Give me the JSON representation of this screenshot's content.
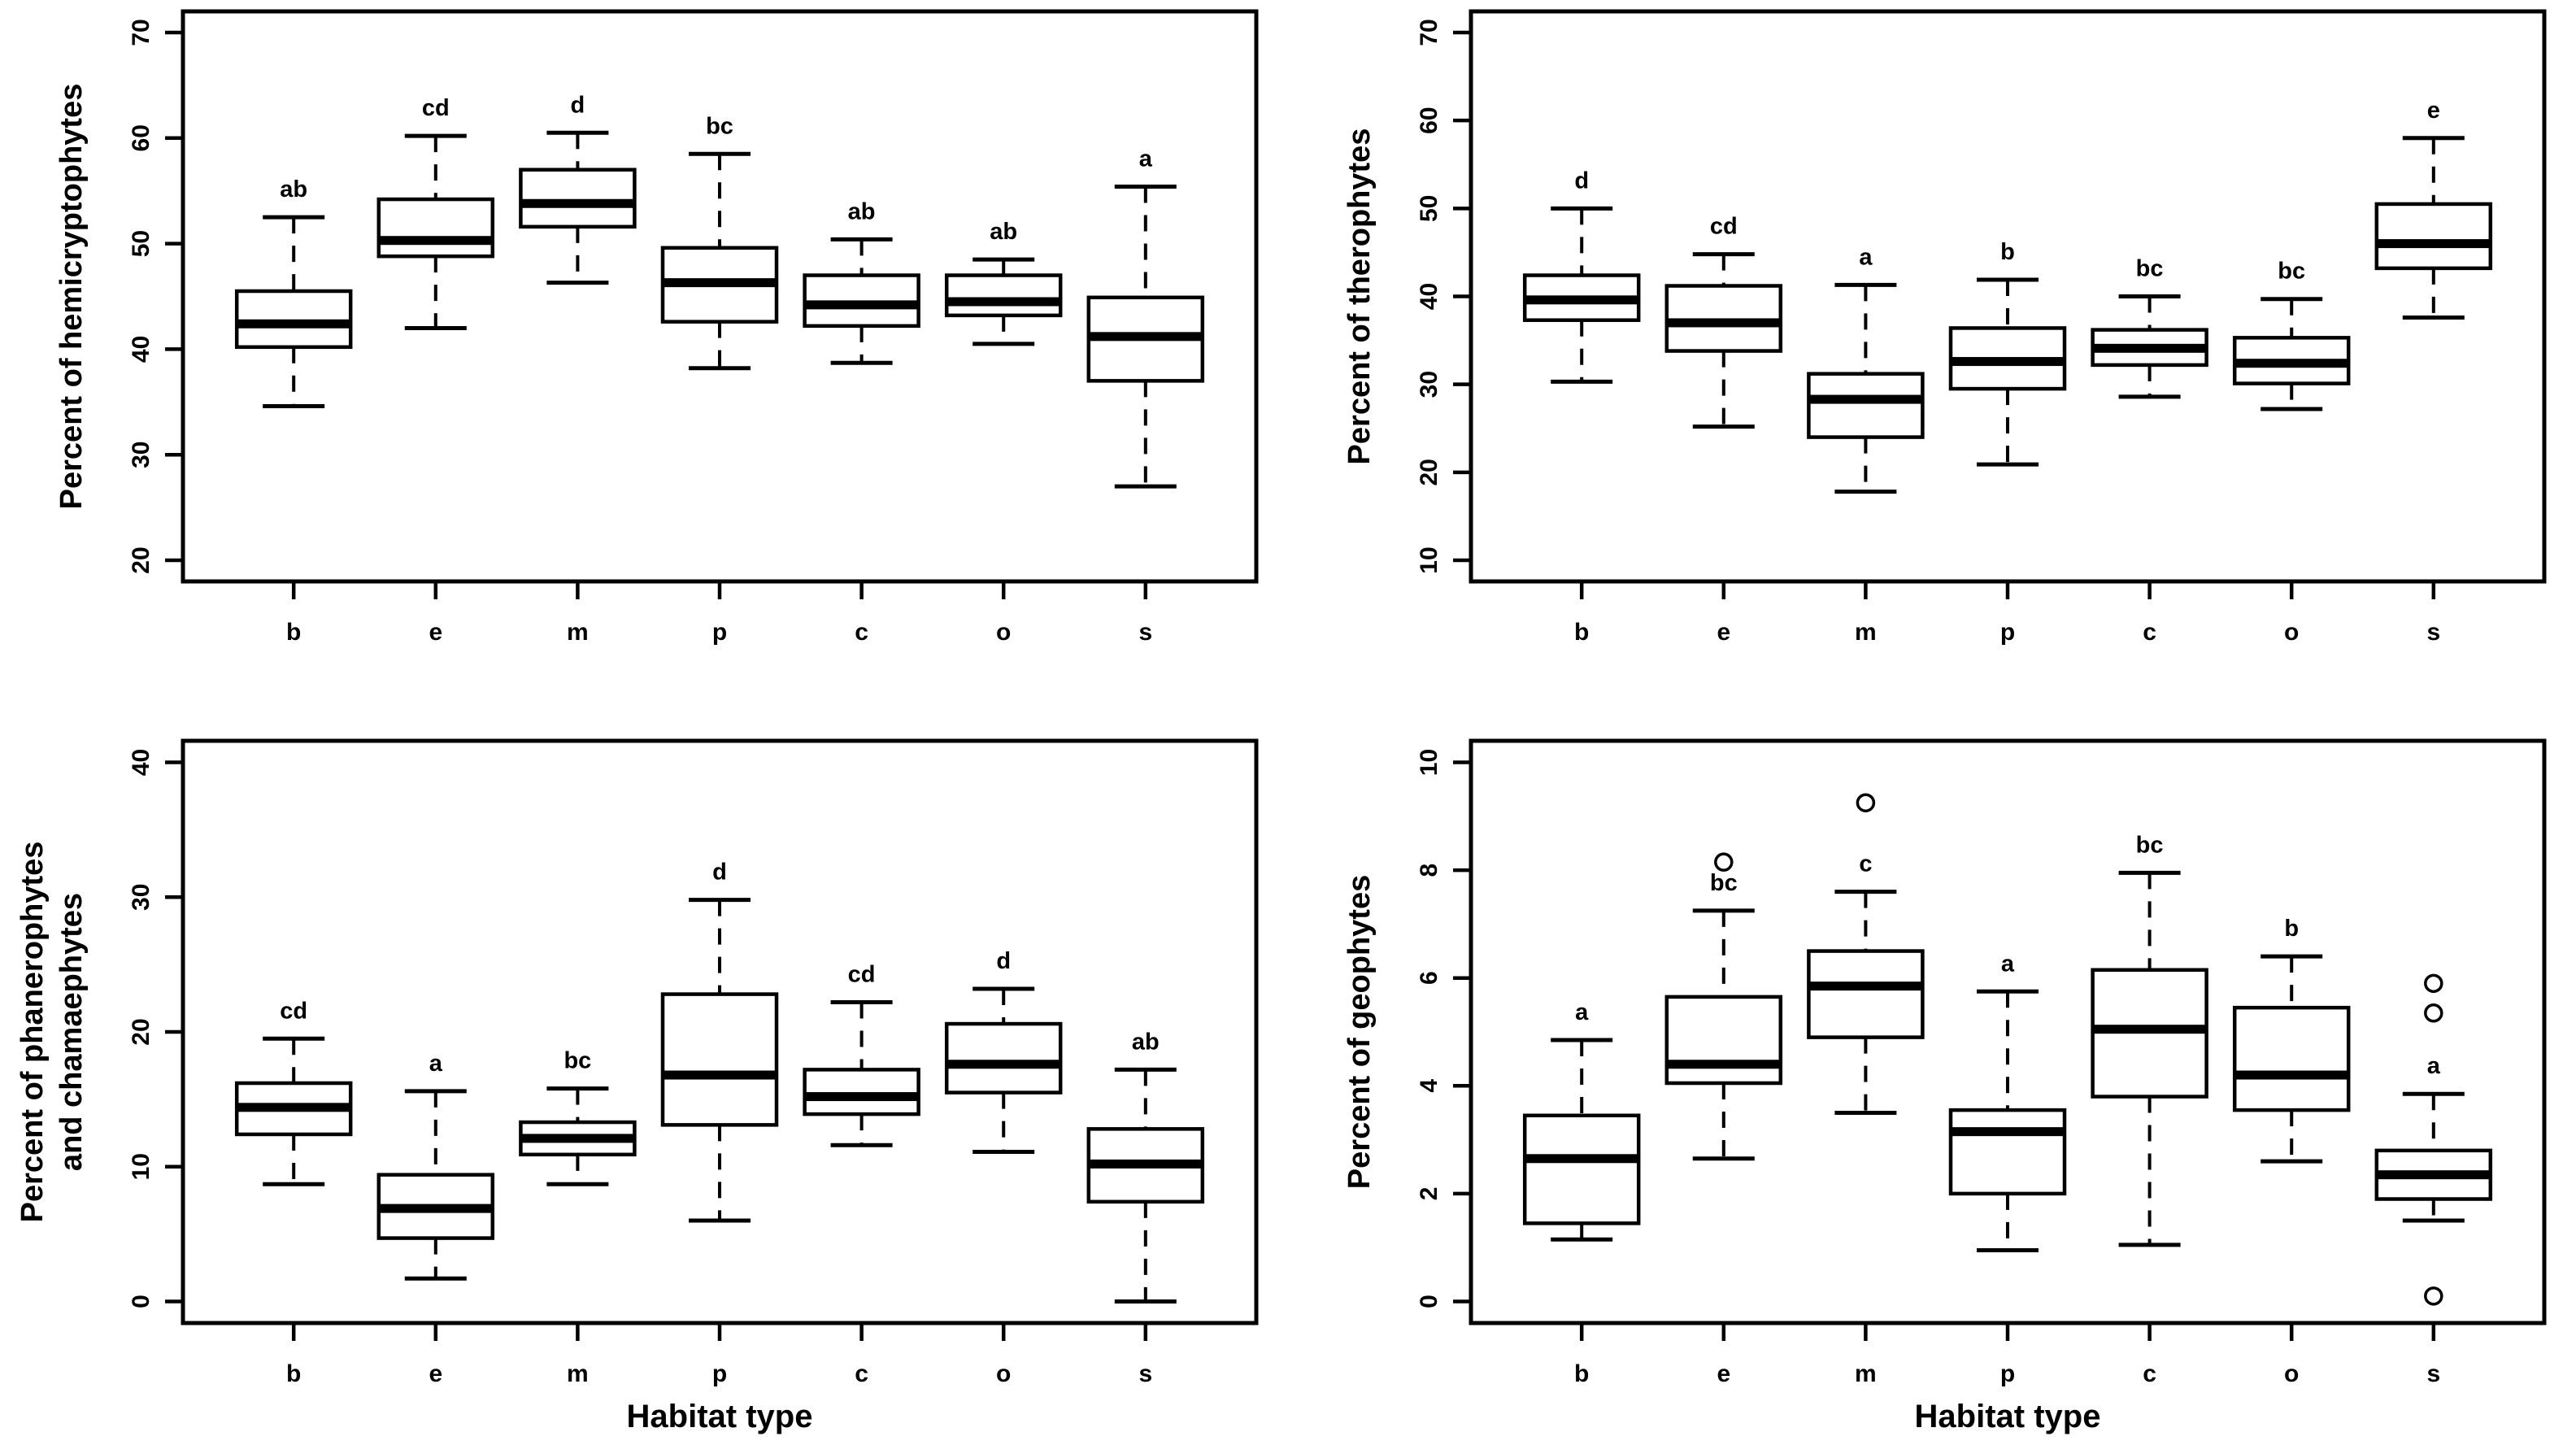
{
  "figure": {
    "background": "#ffffff",
    "ink_color": "#000000",
    "layout": "2x2 grid of R-style boxplot panels",
    "shared_x_axis_title": "Habitat type",
    "habitat_codes": [
      "b",
      "e",
      "m",
      "p",
      "c",
      "o",
      "s"
    ]
  },
  "chart_data": [
    {
      "type": "boxplot",
      "panel": "top-left",
      "ylabel_lines": [
        "Percent of hemicryptophytes"
      ],
      "xlabel": "",
      "categories": [
        "b",
        "e",
        "m",
        "p",
        "c",
        "o",
        "s"
      ],
      "yticks": [
        20,
        30,
        40,
        50,
        60,
        70
      ],
      "ylim": [
        20,
        70
      ],
      "grid": false,
      "series": [
        {
          "category": "b",
          "letter": "ab",
          "whisker_low": 34.6,
          "q1": 40.2,
          "median": 42.4,
          "q3": 45.5,
          "whisker_high": 52.5,
          "outliers": []
        },
        {
          "category": "e",
          "letter": "cd",
          "whisker_low": 42.0,
          "q1": 48.8,
          "median": 50.3,
          "q3": 54.2,
          "whisker_high": 60.2,
          "outliers": []
        },
        {
          "category": "m",
          "letter": "d",
          "whisker_low": 46.3,
          "q1": 51.6,
          "median": 53.8,
          "q3": 57.0,
          "whisker_high": 60.5,
          "outliers": []
        },
        {
          "category": "p",
          "letter": "bc",
          "whisker_low": 38.2,
          "q1": 42.6,
          "median": 46.3,
          "q3": 49.6,
          "whisker_high": 58.5,
          "outliers": []
        },
        {
          "category": "c",
          "letter": "ab",
          "whisker_low": 38.7,
          "q1": 42.2,
          "median": 44.2,
          "q3": 47.0,
          "whisker_high": 50.4,
          "outliers": []
        },
        {
          "category": "o",
          "letter": "ab",
          "whisker_low": 40.5,
          "q1": 43.2,
          "median": 44.5,
          "q3": 47.0,
          "whisker_high": 48.5,
          "outliers": []
        },
        {
          "category": "s",
          "letter": "a",
          "whisker_low": 27.0,
          "q1": 37.0,
          "median": 41.2,
          "q3": 44.9,
          "whisker_high": 55.4,
          "outliers": []
        }
      ]
    },
    {
      "type": "boxplot",
      "panel": "top-right",
      "ylabel_lines": [
        "Percent of therophytes"
      ],
      "xlabel": "",
      "categories": [
        "b",
        "e",
        "m",
        "p",
        "c",
        "o",
        "s"
      ],
      "yticks": [
        10,
        20,
        30,
        40,
        50,
        60,
        70
      ],
      "ylim": [
        10,
        70
      ],
      "grid": false,
      "series": [
        {
          "category": "b",
          "letter": "d",
          "whisker_low": 30.3,
          "q1": 37.3,
          "median": 39.6,
          "q3": 42.4,
          "whisker_high": 50.0,
          "outliers": []
        },
        {
          "category": "e",
          "letter": "cd",
          "whisker_low": 25.2,
          "q1": 33.8,
          "median": 37.0,
          "q3": 41.2,
          "whisker_high": 44.8,
          "outliers": []
        },
        {
          "category": "m",
          "letter": "a",
          "whisker_low": 17.8,
          "q1": 24.0,
          "median": 28.3,
          "q3": 31.2,
          "whisker_high": 41.3,
          "outliers": []
        },
        {
          "category": "p",
          "letter": "b",
          "whisker_low": 20.9,
          "q1": 29.5,
          "median": 32.6,
          "q3": 36.4,
          "whisker_high": 41.9,
          "outliers": []
        },
        {
          "category": "c",
          "letter": "bc",
          "whisker_low": 28.6,
          "q1": 32.2,
          "median": 34.1,
          "q3": 36.2,
          "whisker_high": 40.0,
          "outliers": []
        },
        {
          "category": "o",
          "letter": "bc",
          "whisker_low": 27.2,
          "q1": 30.1,
          "median": 32.4,
          "q3": 35.3,
          "whisker_high": 39.7,
          "outliers": []
        },
        {
          "category": "s",
          "letter": "e",
          "whisker_low": 37.6,
          "q1": 43.2,
          "median": 46.0,
          "q3": 50.5,
          "whisker_high": 58.0,
          "outliers": []
        }
      ]
    },
    {
      "type": "boxplot",
      "panel": "bottom-left",
      "ylabel_lines": [
        "Percent of phanerophytes",
        "and chamaephytes"
      ],
      "xlabel": "Habitat type",
      "categories": [
        "b",
        "e",
        "m",
        "p",
        "c",
        "o",
        "s"
      ],
      "yticks": [
        0,
        10,
        20,
        30,
        40
      ],
      "ylim": [
        0,
        40
      ],
      "grid": false,
      "series": [
        {
          "category": "b",
          "letter": "cd",
          "whisker_low": 8.7,
          "q1": 12.4,
          "median": 14.4,
          "q3": 16.2,
          "whisker_high": 19.5,
          "outliers": []
        },
        {
          "category": "e",
          "letter": "a",
          "whisker_low": 1.7,
          "q1": 4.7,
          "median": 6.9,
          "q3": 9.4,
          "whisker_high": 15.6,
          "outliers": []
        },
        {
          "category": "m",
          "letter": "bc",
          "whisker_low": 8.7,
          "q1": 10.9,
          "median": 12.1,
          "q3": 13.3,
          "whisker_high": 15.8,
          "outliers": []
        },
        {
          "category": "p",
          "letter": "d",
          "whisker_low": 6.0,
          "q1": 13.1,
          "median": 16.8,
          "q3": 22.8,
          "whisker_high": 29.8,
          "outliers": []
        },
        {
          "category": "c",
          "letter": "cd",
          "whisker_low": 11.6,
          "q1": 13.9,
          "median": 15.2,
          "q3": 17.2,
          "whisker_high": 22.2,
          "outliers": []
        },
        {
          "category": "o",
          "letter": "d",
          "whisker_low": 11.1,
          "q1": 15.5,
          "median": 17.6,
          "q3": 20.6,
          "whisker_high": 23.2,
          "outliers": []
        },
        {
          "category": "s",
          "letter": "ab",
          "whisker_low": 0.0,
          "q1": 7.4,
          "median": 10.2,
          "q3": 12.8,
          "whisker_high": 17.2,
          "outliers": []
        }
      ]
    },
    {
      "type": "boxplot",
      "panel": "bottom-right",
      "ylabel_lines": [
        "Percent of geophytes"
      ],
      "xlabel": "Habitat type",
      "categories": [
        "b",
        "e",
        "m",
        "p",
        "c",
        "o",
        "s"
      ],
      "yticks": [
        0,
        2,
        4,
        6,
        8,
        10
      ],
      "ylim": [
        0,
        10
      ],
      "grid": false,
      "series": [
        {
          "category": "b",
          "letter": "a",
          "whisker_low": 1.15,
          "q1": 1.45,
          "median": 2.65,
          "q3": 3.45,
          "whisker_high": 4.85,
          "outliers": []
        },
        {
          "category": "e",
          "letter": "bc",
          "whisker_low": 2.65,
          "q1": 4.05,
          "median": 4.4,
          "q3": 5.65,
          "whisker_high": 7.25,
          "outliers": [
            8.15
          ]
        },
        {
          "category": "m",
          "letter": "c",
          "whisker_low": 3.5,
          "q1": 4.9,
          "median": 5.85,
          "q3": 6.5,
          "whisker_high": 7.6,
          "outliers": [
            9.25
          ]
        },
        {
          "category": "p",
          "letter": "a",
          "whisker_low": 0.95,
          "q1": 2.0,
          "median": 3.15,
          "q3": 3.55,
          "whisker_high": 5.75,
          "outliers": []
        },
        {
          "category": "c",
          "letter": "bc",
          "whisker_low": 1.05,
          "q1": 3.8,
          "median": 5.05,
          "q3": 6.15,
          "whisker_high": 7.95,
          "outliers": []
        },
        {
          "category": "o",
          "letter": "b",
          "whisker_low": 2.6,
          "q1": 3.55,
          "median": 4.2,
          "q3": 5.45,
          "whisker_high": 6.4,
          "outliers": []
        },
        {
          "category": "s",
          "letter": "a",
          "whisker_low": 1.5,
          "q1": 1.9,
          "median": 2.35,
          "q3": 2.8,
          "whisker_high": 3.85,
          "outliers": [
            5.9,
            5.35,
            0.1
          ]
        }
      ]
    }
  ]
}
